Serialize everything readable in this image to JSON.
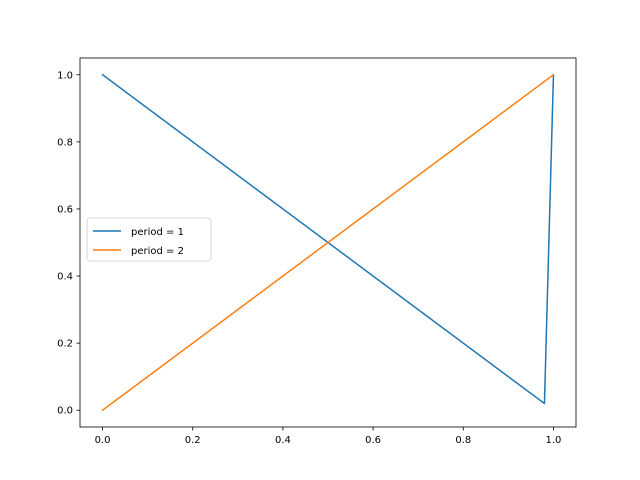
{
  "chart_data": {
    "type": "line",
    "title": "",
    "xlabel": "",
    "ylabel": "",
    "xlim": [
      -0.05,
      1.05
    ],
    "ylim": [
      -0.05,
      1.05
    ],
    "xticks": [
      0.0,
      0.2,
      0.4,
      0.6,
      0.8,
      1.0
    ],
    "xtick_labels": [
      "0.0",
      "0.2",
      "0.4",
      "0.6",
      "0.8",
      "1.0"
    ],
    "yticks": [
      0.0,
      0.2,
      0.4,
      0.6,
      0.8,
      1.0
    ],
    "ytick_labels": [
      "0.0",
      "0.2",
      "0.4",
      "0.6",
      "0.8",
      "1.0"
    ],
    "grid": false,
    "legend_position": "center-left",
    "series": [
      {
        "name": "period = 1",
        "color": "#1f77b4",
        "x": [
          0.0,
          0.98,
          1.0
        ],
        "y": [
          1.0,
          0.02,
          1.0
        ]
      },
      {
        "name": "period = 2",
        "color": "#ff7f0e",
        "x": [
          0.0,
          1.0
        ],
        "y": [
          0.0,
          1.0
        ]
      }
    ]
  }
}
